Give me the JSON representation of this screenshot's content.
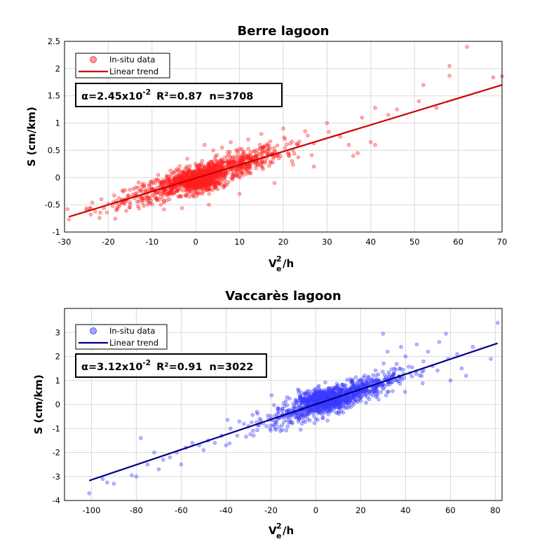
{
  "chart_data": [
    {
      "type": "scatter",
      "title": "Berre lagoon",
      "xlabel": {
        "base": "V",
        "sup": "2",
        "sub": "e",
        "suffix": "/h"
      },
      "ylabel": "S (cm/km)",
      "xlim": [
        -30,
        70
      ],
      "ylim": [
        -1,
        2.5
      ],
      "xticks": [
        "-30",
        "-20",
        "-10",
        "0",
        "10",
        "20",
        "30",
        "40",
        "50",
        "60",
        "70"
      ],
      "yticks": [
        "-1",
        "-0.5",
        "0",
        "0.5",
        "1",
        "1.5",
        "2",
        "2.5"
      ],
      "grid": true,
      "legend": {
        "placement": "top-left",
        "entries": [
          "In-situ data",
          "Linear trend"
        ]
      },
      "stats": {
        "alpha_prefix": "α=2.45x10",
        "alpha_exp": "-2",
        "r2": "R²=0.87",
        "n": "n=3708"
      },
      "colors": {
        "points": "#ff2020",
        "trend": "#cc0000"
      },
      "trend": {
        "x": [
          -29,
          70
        ],
        "y": [
          -0.72,
          1.7
        ]
      },
      "series": [
        {
          "name": "In-situ data",
          "points": [
            [
              -29,
              -0.77
            ],
            [
              -25,
              -0.6
            ],
            [
              -24,
              -0.68
            ],
            [
              -23,
              -0.62
            ],
            [
              -22,
              -0.74
            ],
            [
              -21,
              -0.56
            ],
            [
              -20,
              -0.48
            ],
            [
              -19,
              -0.52
            ],
            [
              -18,
              -0.58
            ],
            [
              -17,
              -0.46
            ],
            [
              -16,
              -0.42
            ],
            [
              -15,
              -0.5
            ],
            [
              -14,
              -0.38
            ],
            [
              -13,
              -0.44
            ],
            [
              -12,
              -0.3
            ],
            [
              -11,
              -0.36
            ],
            [
              -10,
              -0.32
            ],
            [
              -10,
              -0.2
            ],
            [
              -9,
              -0.28
            ],
            [
              -8,
              -0.5
            ],
            [
              -7,
              -0.22
            ],
            [
              -6,
              -0.4
            ],
            [
              -5,
              -0.18
            ],
            [
              -4,
              -0.35
            ],
            [
              2,
              0.6
            ],
            [
              4,
              0.5
            ],
            [
              3,
              -0.5
            ],
            [
              6,
              0.55
            ],
            [
              8,
              0.65
            ],
            [
              10,
              -0.3
            ],
            [
              12,
              0.7
            ],
            [
              15,
              0.8
            ],
            [
              18,
              -0.1
            ],
            [
              20,
              0.9
            ],
            [
              22,
              0.3
            ],
            [
              25,
              0.85
            ],
            [
              27,
              0.2
            ],
            [
              30,
              1.0
            ],
            [
              33,
              0.75
            ],
            [
              35,
              0.6
            ],
            [
              36,
              0.4
            ],
            [
              37,
              0.45
            ],
            [
              38,
              1.1
            ],
            [
              40,
              0.65
            ],
            [
              41,
              1.28
            ],
            [
              44,
              1.15
            ],
            [
              41,
              0.6
            ],
            [
              46,
              1.25
            ],
            [
              51,
              1.4
            ],
            [
              52,
              1.7
            ],
            [
              55,
              1.28
            ],
            [
              58,
              2.05
            ],
            [
              58,
              1.87
            ],
            [
              62,
              2.4
            ],
            [
              70,
              1.86
            ],
            [
              68,
              1.84
            ]
          ]
        }
      ]
    },
    {
      "type": "scatter",
      "title": "Vaccarès lagoon",
      "xlabel": {
        "base": "V",
        "sup": "2",
        "sub": "e",
        "suffix": "/h"
      },
      "ylabel": "S (cm/km)",
      "xlim": [
        -112,
        83
      ],
      "ylim": [
        -4,
        4
      ],
      "xticks": [
        "-100",
        "-80",
        "-60",
        "-40",
        "-20",
        "0",
        "20",
        "40",
        "60",
        "80"
      ],
      "yticks": [
        "-4",
        "-3",
        "-2",
        "-1",
        "0",
        "1",
        "2",
        "3"
      ],
      "grid": true,
      "legend": {
        "placement": "top-left",
        "entries": [
          "In-situ data",
          "Linear trend"
        ]
      },
      "stats": {
        "alpha_prefix": "α=3.12x10",
        "alpha_exp": "-2",
        "r2": "R²=0.91",
        "n": "n=3022"
      },
      "colors": {
        "points": "#3a3aff",
        "trend": "#00008b"
      },
      "trend": {
        "x": [
          -101,
          81
        ],
        "y": [
          -3.17,
          2.55
        ]
      },
      "series": [
        {
          "name": "In-situ data",
          "points": [
            [
              -101,
              -3.7
            ],
            [
              -95,
              -3.1
            ],
            [
              -93,
              -3.25
            ],
            [
              -90,
              -3.3
            ],
            [
              -82,
              -2.95
            ],
            [
              -80,
              -3.0
            ],
            [
              -78,
              -1.4
            ],
            [
              -75,
              -2.5
            ],
            [
              -72,
              -2.0
            ],
            [
              -70,
              -2.7
            ],
            [
              -68,
              -2.3
            ],
            [
              -65,
              -2.2
            ],
            [
              -62,
              -2.0
            ],
            [
              -60,
              -2.5
            ],
            [
              -58,
              -1.8
            ],
            [
              -55,
              -1.6
            ],
            [
              -52,
              -1.7
            ],
            [
              -50,
              -1.9
            ],
            [
              -48,
              -1.5
            ],
            [
              -45,
              -1.6
            ],
            [
              -42,
              -1.3
            ],
            [
              -40,
              -1.7
            ],
            [
              -38,
              -1.0
            ],
            [
              -35,
              -1.3
            ],
            [
              -32,
              -0.8
            ],
            [
              -30,
              -0.9
            ],
            [
              -28,
              -1.1
            ],
            [
              -25,
              -0.6
            ],
            [
              -22,
              -0.9
            ],
            [
              30,
              2.95
            ],
            [
              28,
              0.2
            ],
            [
              32,
              2.2
            ],
            [
              35,
              1.5
            ],
            [
              38,
              2.4
            ],
            [
              40,
              2.0
            ],
            [
              42,
              1.3
            ],
            [
              45,
              2.5
            ],
            [
              48,
              1.8
            ],
            [
              50,
              2.2
            ],
            [
              52,
              1.6
            ],
            [
              55,
              2.6
            ],
            [
              58,
              2.95
            ],
            [
              59,
              1.9
            ],
            [
              60,
              1.0
            ],
            [
              63,
              2.1
            ],
            [
              65,
              1.5
            ],
            [
              67,
              1.2
            ],
            [
              70,
              2.4
            ],
            [
              78,
              1.9
            ],
            [
              81,
              3.4
            ]
          ]
        }
      ]
    }
  ]
}
